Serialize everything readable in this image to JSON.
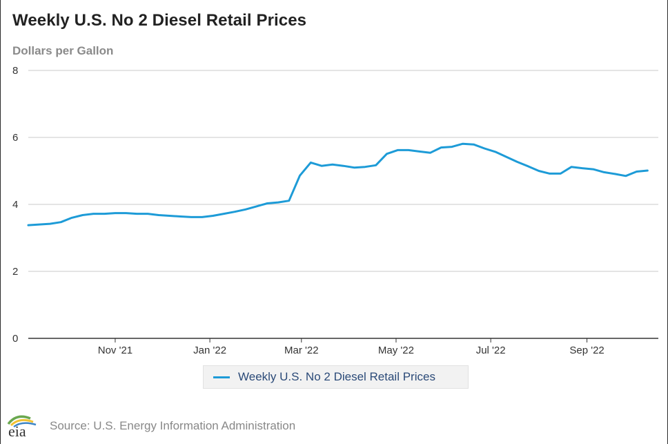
{
  "title": "Weekly U.S. No 2 Diesel Retail Prices",
  "y_axis_label": "Dollars per Gallon",
  "source": "Source: U.S. Energy Information Administration",
  "logo_text": "eia",
  "colors": {
    "series": "#1d9bd7",
    "grid": "#c8c8c8",
    "axis": "#333333",
    "title": "#222222",
    "ylabel": "#8a8a8a",
    "legend_bg": "#f2f2f2",
    "legend_text": "#2b4a78"
  },
  "chart_data": {
    "type": "line",
    "title": "Weekly U.S. No 2 Diesel Retail Prices",
    "ylabel": "Dollars per Gallon",
    "xlabel": "",
    "ylim": [
      0,
      8
    ],
    "yticks": [
      "0",
      "2",
      "4",
      "6",
      "8"
    ],
    "xticks": [
      {
        "label": "Nov '21",
        "date": "2021-11-01"
      },
      {
        "label": "Jan '22",
        "date": "2022-01-01"
      },
      {
        "label": "Mar '22",
        "date": "2022-03-01"
      },
      {
        "label": "May '22",
        "date": "2022-05-01"
      },
      {
        "label": "Jul '22",
        "date": "2022-07-01"
      },
      {
        "label": "Sep '22",
        "date": "2022-09-01"
      }
    ],
    "xlim": [
      "2021-09-06",
      "2022-10-17"
    ],
    "grid": true,
    "legend": "bottom",
    "series": [
      {
        "name": "Weekly U.S. No 2 Diesel Retail Prices",
        "x": [
          "2021-09-06",
          "2021-09-13",
          "2021-09-20",
          "2021-09-27",
          "2021-10-04",
          "2021-10-11",
          "2021-10-18",
          "2021-10-25",
          "2021-11-01",
          "2021-11-08",
          "2021-11-15",
          "2021-11-22",
          "2021-11-29",
          "2021-12-06",
          "2021-12-13",
          "2021-12-20",
          "2021-12-27",
          "2022-01-03",
          "2022-01-10",
          "2022-01-17",
          "2022-01-24",
          "2022-01-31",
          "2022-02-07",
          "2022-02-14",
          "2022-02-21",
          "2022-02-28",
          "2022-03-07",
          "2022-03-14",
          "2022-03-21",
          "2022-03-28",
          "2022-04-04",
          "2022-04-11",
          "2022-04-18",
          "2022-04-25",
          "2022-05-02",
          "2022-05-09",
          "2022-05-16",
          "2022-05-23",
          "2022-05-30",
          "2022-06-06",
          "2022-06-13",
          "2022-06-20",
          "2022-06-27",
          "2022-07-04",
          "2022-07-11",
          "2022-07-18",
          "2022-07-25",
          "2022-08-01",
          "2022-08-08",
          "2022-08-15",
          "2022-08-22",
          "2022-08-29",
          "2022-09-05",
          "2022-09-12",
          "2022-09-19",
          "2022-09-26",
          "2022-10-03",
          "2022-10-10"
        ],
        "values": [
          3.38,
          3.4,
          3.42,
          3.47,
          3.6,
          3.68,
          3.72,
          3.72,
          3.74,
          3.74,
          3.72,
          3.72,
          3.68,
          3.66,
          3.64,
          3.62,
          3.62,
          3.66,
          3.72,
          3.78,
          3.85,
          3.94,
          4.03,
          4.06,
          4.11,
          4.86,
          5.25,
          5.15,
          5.19,
          5.15,
          5.1,
          5.12,
          5.17,
          5.51,
          5.62,
          5.62,
          5.58,
          5.54,
          5.7,
          5.72,
          5.81,
          5.79,
          5.67,
          5.57,
          5.42,
          5.27,
          5.14,
          5.0,
          4.92,
          4.92,
          5.12,
          5.08,
          5.05,
          4.96,
          4.91,
          4.85,
          4.98,
          5.01
        ]
      }
    ]
  }
}
